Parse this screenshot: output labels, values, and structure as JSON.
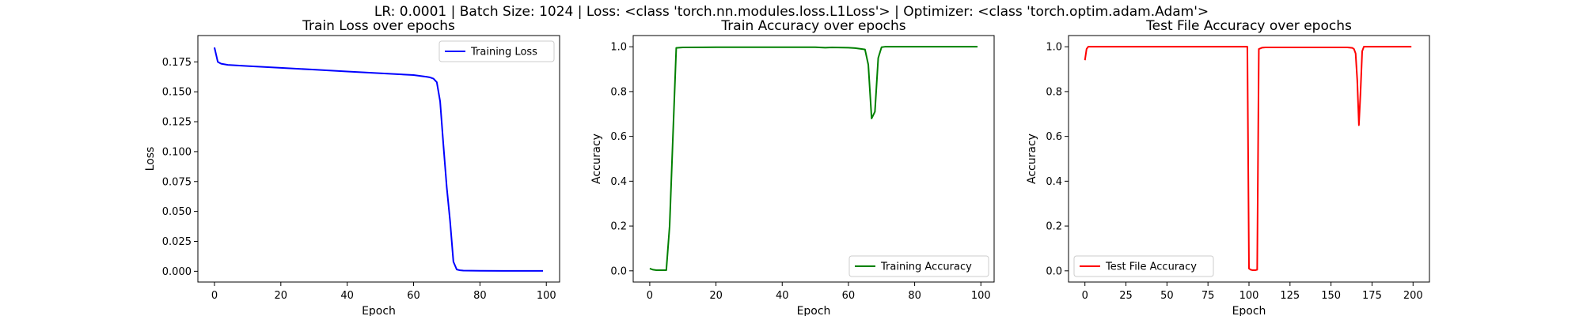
{
  "suptitle": "LR: 0.0001 | Batch Size: 1024 | Loss: <class 'torch.nn.modules.loss.L1Loss'> | Optimizer: <class 'torch.optim.adam.Adam'>",
  "chart_data": [
    {
      "type": "line",
      "title": "Train Loss over epochs",
      "xlabel": "Epoch",
      "ylabel": "Loss",
      "xlim": [
        -5,
        104
      ],
      "ylim": [
        -0.009,
        0.197
      ],
      "xticks": [
        0,
        20,
        40,
        60,
        80,
        100
      ],
      "yticks": [
        0.0,
        0.025,
        0.05,
        0.075,
        0.1,
        0.125,
        0.15,
        0.175
      ],
      "ytick_labels": [
        "0.000",
        "0.025",
        "0.050",
        "0.075",
        "0.100",
        "0.125",
        "0.150",
        "0.175"
      ],
      "legend_position": "upper-right",
      "grid": false,
      "series": [
        {
          "name": "Training Loss",
          "color": "#0000ff",
          "x": [
            0,
            1,
            2,
            3,
            4,
            5,
            10,
            20,
            30,
            40,
            50,
            60,
            64,
            65,
            66,
            67,
            68,
            69,
            70,
            71,
            72,
            73,
            74,
            75,
            80,
            90,
            99
          ],
          "y": [
            0.187,
            0.175,
            0.1735,
            0.173,
            0.1725,
            0.1723,
            0.1715,
            0.17,
            0.1685,
            0.167,
            0.1655,
            0.164,
            0.1625,
            0.162,
            0.161,
            0.158,
            0.142,
            0.105,
            0.07,
            0.042,
            0.008,
            0.0015,
            0.0008,
            0.0006,
            0.0004,
            0.0003,
            0.0003
          ]
        }
      ]
    },
    {
      "type": "line",
      "title": "Train Accuracy over epochs",
      "xlabel": "Epoch",
      "ylabel": "Accuracy",
      "xlim": [
        -5,
        104
      ],
      "ylim": [
        -0.05,
        1.05
      ],
      "xticks": [
        0,
        20,
        40,
        60,
        80,
        100
      ],
      "yticks": [
        0.0,
        0.2,
        0.4,
        0.6,
        0.8,
        1.0
      ],
      "ytick_labels": [
        "0.0",
        "0.2",
        "0.4",
        "0.6",
        "0.8",
        "1.0"
      ],
      "legend_position": "lower-right",
      "grid": false,
      "series": [
        {
          "name": "Training Accuracy",
          "color": "#008000",
          "x": [
            0,
            1,
            2,
            4,
            5,
            6,
            7,
            8,
            10,
            20,
            30,
            40,
            50,
            53,
            55,
            60,
            62,
            64,
            65,
            66,
            67,
            68,
            69,
            70,
            71,
            72,
            80,
            90,
            99
          ],
          "y": [
            0.01,
            0.005,
            0.003,
            0.003,
            0.003,
            0.2,
            0.6,
            0.995,
            0.997,
            0.998,
            0.998,
            0.998,
            0.998,
            0.996,
            0.997,
            0.996,
            0.994,
            0.99,
            0.988,
            0.92,
            0.68,
            0.71,
            0.95,
            0.998,
            1.0,
            1.0,
            1.0,
            1.0,
            1.0
          ]
        }
      ]
    },
    {
      "type": "line",
      "title": "Test File Accuracy over epochs",
      "xlabel": "Epoch",
      "ylabel": "Accuracy",
      "xlim": [
        -10,
        210
      ],
      "ylim": [
        -0.05,
        1.05
      ],
      "xticks": [
        0,
        25,
        50,
        75,
        100,
        125,
        150,
        175,
        200
      ],
      "yticks": [
        0.0,
        0.2,
        0.4,
        0.6,
        0.8,
        1.0
      ],
      "ytick_labels": [
        "0.0",
        "0.2",
        "0.4",
        "0.6",
        "0.8",
        "1.0"
      ],
      "legend_position": "lower-left",
      "grid": false,
      "series": [
        {
          "name": "Test File Accuracy",
          "color": "#ff0000",
          "x": [
            0,
            1,
            2,
            5,
            10,
            50,
            99,
            100,
            101,
            102,
            103,
            104,
            105,
            106,
            107,
            108,
            110,
            120,
            150,
            160,
            163,
            164,
            165,
            166,
            167,
            168,
            169,
            170,
            172,
            180,
            199
          ],
          "y": [
            0.94,
            0.99,
            1.0,
            1.0,
            1.0,
            1.0,
            1.0,
            0.01,
            0.005,
            0.003,
            0.003,
            0.003,
            0.005,
            0.99,
            0.993,
            0.996,
            0.997,
            0.997,
            0.997,
            0.997,
            0.995,
            0.99,
            0.97,
            0.85,
            0.65,
            0.8,
            0.98,
            1.0,
            1.0,
            1.0,
            1.0
          ]
        }
      ]
    }
  ]
}
